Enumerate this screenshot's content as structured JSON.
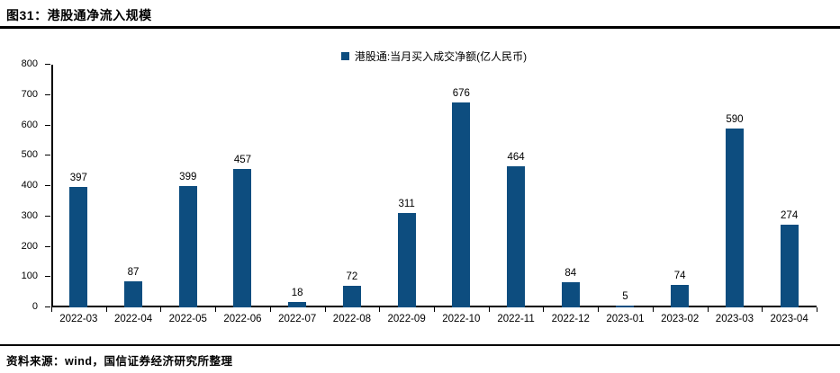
{
  "header": {
    "title": "图31：港股通净流入规模"
  },
  "footer": {
    "source": "资料来源：wind，国信证券经济研究所整理"
  },
  "colors": {
    "bar": "#0D4D7F",
    "axis": "#000000",
    "text": "#000000",
    "background": "#FFFFFF"
  },
  "chart_data": {
    "type": "bar",
    "title": "图31：港股通净流入规模",
    "legend": "港股通:当月买入成交净额(亿人民币)",
    "legend_position": "top-center",
    "categories": [
      "2022-03",
      "2022-04",
      "2022-05",
      "2022-06",
      "2022-07",
      "2022-08",
      "2022-09",
      "2022-10",
      "2022-11",
      "2022-12",
      "2023-01",
      "2023-02",
      "2023-03",
      "2023-04"
    ],
    "values": [
      397,
      87,
      399,
      457,
      18,
      72,
      311,
      676,
      464,
      84,
      5,
      74,
      590,
      274
    ],
    "xlabel": "",
    "ylabel": "",
    "ylim": [
      0,
      800
    ],
    "yticks": [
      0,
      100,
      200,
      300,
      400,
      500,
      600,
      700,
      800
    ],
    "grid": false,
    "data_labels": true,
    "bar_color": "#0D4D7F"
  }
}
